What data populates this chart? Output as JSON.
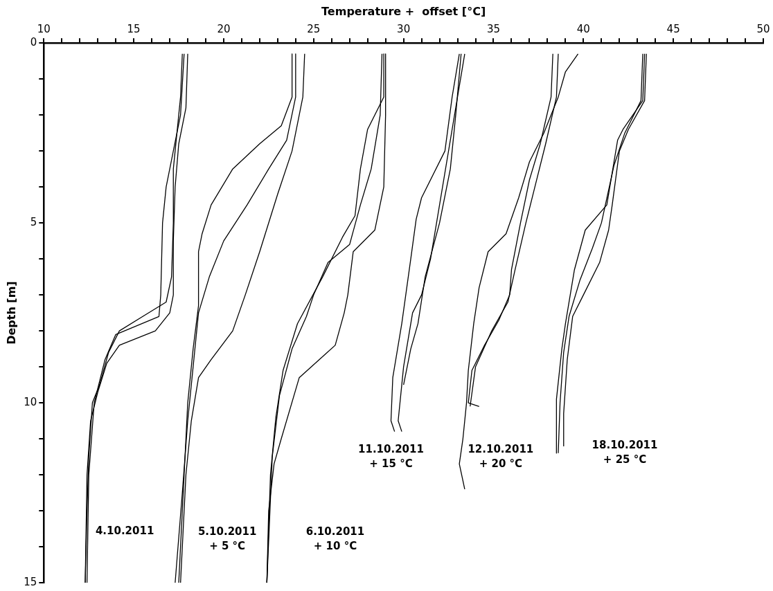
{
  "chart_data": {
    "type": "line",
    "xlabel": "Temperature +  offset [°C]",
    "ylabel": "Depth [m]",
    "xlim": [
      10,
      50
    ],
    "ylim": [
      15,
      0
    ],
    "xticks": [
      10,
      {
        "value": 11,
        "label": null
      },
      {
        "value": 12,
        "label": null
      },
      {
        "value": 13,
        "label": null
      },
      {
        "value": 14,
        "label": null
      },
      15,
      {
        "value": 16,
        "label": null
      },
      {
        "value": 17,
        "label": null
      },
      {
        "value": 18,
        "label": null
      },
      {
        "value": 19,
        "label": null
      },
      20,
      {
        "value": 21,
        "label": null
      },
      {
        "value": 22,
        "label": null
      },
      {
        "value": 23,
        "label": null
      },
      {
        "value": 24,
        "label": null
      },
      25,
      {
        "value": 26,
        "label": null
      },
      {
        "value": 27,
        "label": null
      },
      {
        "value": 28,
        "label": null
      },
      {
        "value": 29,
        "label": null
      },
      30,
      {
        "value": 31,
        "label": null
      },
      {
        "value": 32,
        "label": null
      },
      {
        "value": 33,
        "label": null
      },
      {
        "value": 34,
        "label": null
      },
      35,
      {
        "value": 36,
        "label": null
      },
      {
        "value": 37,
        "label": null
      },
      {
        "value": 38,
        "label": null
      },
      {
        "value": 39,
        "label": null
      },
      40,
      {
        "value": 41,
        "label": null
      },
      {
        "value": 42,
        "label": null
      },
      {
        "value": 43,
        "label": null
      },
      {
        "value": 44,
        "label": null
      },
      45,
      {
        "value": 46,
        "label": null
      },
      {
        "value": 47,
        "label": null
      },
      {
        "value": 48,
        "label": null
      },
      {
        "value": 49,
        "label": null
      },
      50
    ],
    "yticks": [
      0,
      {
        "value": 1,
        "label": null
      },
      {
        "value": 2,
        "label": null
      },
      {
        "value": 3,
        "label": null
      },
      {
        "value": 4,
        "label": null
      },
      5,
      {
        "value": 6,
        "label": null
      },
      {
        "value": 7,
        "label": null
      },
      {
        "value": 8,
        "label": null
      },
      {
        "value": 9,
        "label": null
      },
      10,
      {
        "value": 11,
        "label": null
      },
      {
        "value": 12,
        "label": null
      },
      {
        "value": 13,
        "label": null
      },
      {
        "value": 14,
        "label": null
      },
      15
    ],
    "grid": false,
    "legend": false,
    "marker": "none",
    "line_style": "solid",
    "series": [
      {
        "color": "#000000",
        "x": [
          17.7,
          17.6,
          17.4,
          17.2,
          17.2,
          17.1,
          16.8,
          15.5,
          14.2,
          13.6,
          13.1,
          12.7,
          12.5,
          12.4,
          12.3
        ],
        "values": [
          0.3,
          1.5,
          2.5,
          3.5,
          5,
          6.5,
          7.2,
          7.6,
          8.0,
          8.6,
          9.5,
          10,
          11.5,
          13,
          15
        ]
      },
      {
        "color": "#000000",
        "x": [
          18.0,
          17.9,
          17.5,
          17.3,
          17.2,
          17.2,
          17.0,
          16.2,
          14.2,
          13.5,
          13.0,
          12.6,
          12.4,
          12.3
        ],
        "values": [
          0.3,
          1.8,
          2.8,
          4,
          5.5,
          7,
          7.5,
          8.0,
          8.4,
          8.9,
          9.7,
          10.5,
          12,
          15
        ]
      },
      {
        "color": "#000000",
        "x": [
          17.8,
          17.6,
          17.2,
          16.8,
          16.6,
          16.5,
          16.4,
          14.0,
          13.4,
          12.8,
          12.5,
          12.4
        ],
        "values": [
          0.3,
          2,
          3,
          4,
          5,
          7,
          7.6,
          8.1,
          8.8,
          10,
          12,
          15
        ]
      },
      {
        "color": "#000000",
        "x": [
          23.8,
          23.8,
          23.2,
          22.0,
          20.5,
          19.3,
          18.8,
          18.6,
          18.6,
          18.3,
          18.0,
          17.8,
          17.5
        ],
        "values": [
          0.3,
          1.5,
          2.3,
          2.8,
          3.5,
          4.5,
          5.3,
          5.8,
          7.3,
          8.5,
          10,
          12,
          15
        ]
      },
      {
        "color": "#000000",
        "x": [
          24.0,
          24.0,
          23.5,
          22.5,
          21.3,
          20.0,
          19.2,
          18.6,
          18.3,
          18.0,
          17.7,
          17.3
        ],
        "values": [
          0.3,
          1.5,
          2.7,
          3.5,
          4.5,
          5.5,
          6.5,
          7.5,
          9,
          10.5,
          12.5,
          15
        ]
      },
      {
        "color": "#000000",
        "x": [
          24.5,
          24.4,
          23.8,
          23.0,
          22.0,
          21.2,
          20.5,
          19.3,
          18.6,
          18.2,
          17.9,
          17.6
        ],
        "values": [
          0.3,
          1.5,
          3,
          4.2,
          5.8,
          7,
          8,
          8.8,
          9.3,
          10.5,
          12,
          15
        ]
      },
      {
        "color": "#000000",
        "x": [
          28.9,
          28.9,
          28.0,
          27.6,
          27.3,
          26.6,
          25.5,
          24.1,
          23.3,
          22.9,
          22.6,
          22.4
        ],
        "values": [
          0.3,
          1.5,
          2.4,
          3.5,
          4.8,
          5.4,
          6.5,
          7.8,
          9.1,
          10.4,
          12,
          15
        ]
      },
      {
        "color": "#000000",
        "x": [
          29.0,
          29.0,
          28.9,
          28.4,
          27.2,
          26.9,
          26.7,
          26.2,
          24.2,
          23.2,
          22.8,
          22.5,
          22.4
        ],
        "values": [
          0.3,
          2,
          4,
          5.2,
          5.8,
          7,
          7.5,
          8.4,
          9.3,
          11,
          11.7,
          13,
          15
        ]
      },
      {
        "color": "#000000",
        "x": [
          28.8,
          28.7,
          28.2,
          27.6,
          27.0,
          25.8,
          25.0,
          24.6,
          23.8,
          23.1,
          22.7,
          22.4
        ],
        "values": [
          0.3,
          2,
          3.5,
          4.5,
          5.6,
          6.1,
          7,
          7.6,
          8.5,
          9.8,
          11.5,
          15
        ]
      },
      {
        "color": "#000000",
        "x": [
          33.1,
          32.7,
          32.3,
          31.0,
          30.7,
          30.4,
          29.9,
          29.4,
          29.3,
          29.5
        ],
        "values": [
          0.3,
          1.5,
          3,
          4.3,
          4.9,
          6,
          7.8,
          9.3,
          10.5,
          10.8
        ]
      },
      {
        "color": "#000000",
        "x": [
          33.4,
          33.0,
          32.5,
          32.0,
          31.5,
          31.0,
          30.5,
          30.0,
          29.7,
          29.9
        ],
        "values": [
          0.3,
          1.5,
          3,
          4.5,
          6,
          7,
          7.5,
          9,
          10.5,
          10.8
        ]
      },
      {
        "color": "#000000",
        "x": [
          33.2,
          32.9,
          32.6,
          32.0,
          31.2,
          30.8,
          30.4,
          30.0
        ],
        "values": [
          0.3,
          2,
          3.5,
          5,
          6.5,
          7.8,
          8.5,
          9.5
        ]
      },
      {
        "color": "#000000",
        "x": [
          39.7,
          39.0,
          38.6,
          37.8,
          37.0,
          36.4,
          35.7,
          34.7,
          34.2,
          33.9,
          33.6,
          33.5,
          33.3,
          33.1,
          33.4
        ],
        "values": [
          0.3,
          0.8,
          1.5,
          2.5,
          3.3,
          4.3,
          5.3,
          5.8,
          6.8,
          7.8,
          9.1,
          10,
          11,
          11.7,
          12.4
        ]
      },
      {
        "color": "#000000",
        "x": [
          38.3,
          38.2,
          37.6,
          37.0,
          36.5,
          36.0,
          35.9,
          35.3,
          34.5,
          33.8,
          33.6,
          34.2
        ],
        "values": [
          0.3,
          1.5,
          2.8,
          3.8,
          5,
          6.3,
          7.0,
          7.7,
          8.4,
          9.1,
          10.0,
          10.1
        ]
      },
      {
        "color": "#000000",
        "x": [
          38.6,
          38.5,
          37.9,
          37.3,
          36.8,
          36.2,
          35.8,
          34.9,
          34.0,
          33.7
        ],
        "values": [
          0.3,
          1.5,
          2.8,
          4,
          5,
          6.3,
          7.2,
          8,
          9,
          10.1
        ]
      },
      {
        "color": "#000000",
        "x": [
          43.4,
          43.3,
          42.2,
          41.9,
          41.3,
          40.1,
          39.5,
          39.0,
          38.8,
          38.5,
          38.5
        ],
        "values": [
          0.3,
          1.6,
          2.4,
          2.7,
          4.5,
          5.2,
          6.3,
          7.8,
          8.5,
          9.9,
          11.4
        ]
      },
      {
        "color": "#000000",
        "x": [
          43.5,
          43.4,
          42.5,
          42.0,
          41.6,
          41.4,
          40.9,
          40.0,
          39.4,
          39.1,
          38.9,
          38.9
        ],
        "values": [
          0.3,
          1.6,
          2.4,
          3,
          4.5,
          5.2,
          6.1,
          7.0,
          7.6,
          8.8,
          10.3,
          11.2
        ]
      },
      {
        "color": "#000000",
        "x": [
          43.3,
          43.2,
          42.3,
          41.7,
          41.0,
          40.5,
          39.8,
          39.2,
          38.9,
          38.7,
          38.6
        ],
        "values": [
          0.3,
          1.6,
          2.5,
          3.4,
          5,
          5.7,
          6.6,
          7.6,
          8.6,
          10,
          11.4
        ]
      }
    ],
    "annotations": [
      "4.10.2011",
      "5.10.2011\n+ 5 °C",
      "6.10.2011\n+ 10 °C",
      "11.10.2011\n+ 15 °C",
      "12.10.2011\n+ 20 °C",
      "18.10.2011\n+ 25 °C"
    ]
  }
}
